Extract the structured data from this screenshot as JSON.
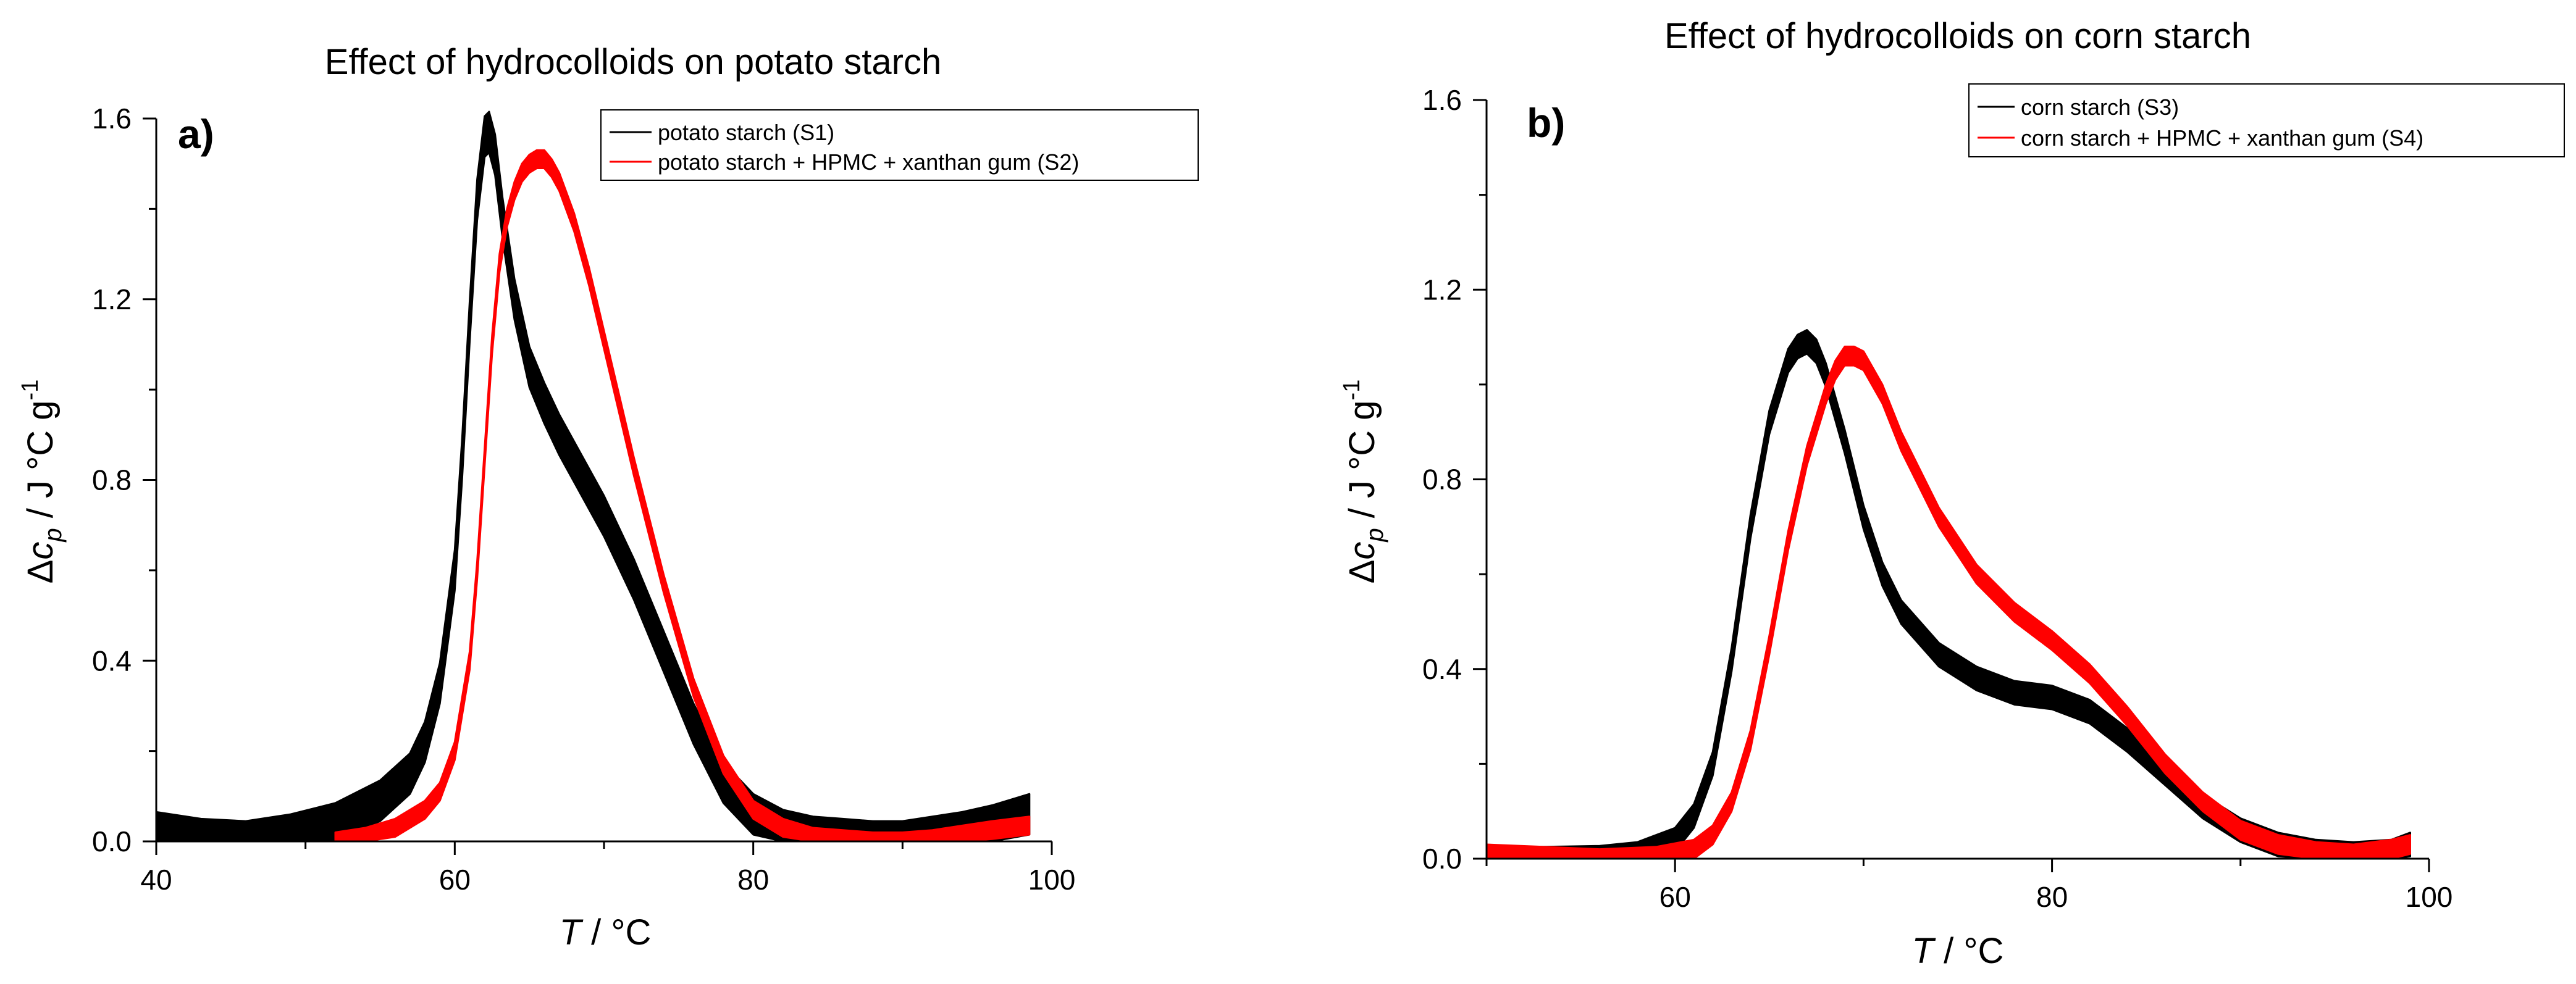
{
  "chart_data": [
    {
      "panel_label": "a)",
      "type": "line",
      "title": "Effect of hydrocolloids on potato starch",
      "xlabel": {
        "main": "T",
        "unit": " / °C"
      },
      "ylabel": {
        "prefix": "Δc",
        "sub": "p",
        "unit": " / J °C g",
        "sup": "-1"
      },
      "xlim": [
        40,
        100
      ],
      "ylim": [
        0,
        1.6
      ],
      "xticks": [
        40,
        60,
        80,
        100
      ],
      "yticks": [
        0.0,
        0.4,
        0.8,
        1.2,
        1.6
      ],
      "ytick_labels": [
        "0.0",
        "0.4",
        "0.8",
        "1.2",
        "1.6"
      ],
      "legend_position": "top-right",
      "series": [
        {
          "name": "potato starch (S1)",
          "color": "#000000",
          "band": 0.045,
          "x": [
            40,
            43,
            46,
            49,
            52,
            55,
            57,
            58,
            59,
            60,
            60.5,
            61,
            61.5,
            62,
            62.3,
            62.7,
            63.2,
            64,
            65,
            66,
            67,
            68,
            70,
            72,
            74,
            76,
            78,
            80,
            82,
            84,
            86,
            88,
            90,
            92,
            94,
            96,
            98.5
          ],
          "y": [
            0.02,
            0.005,
            0.0,
            0.015,
            0.04,
            0.09,
            0.15,
            0.22,
            0.35,
            0.6,
            0.85,
            1.15,
            1.42,
            1.56,
            1.57,
            1.52,
            1.38,
            1.2,
            1.05,
            0.97,
            0.9,
            0.84,
            0.72,
            0.58,
            0.42,
            0.26,
            0.13,
            0.06,
            0.025,
            0.01,
            0.005,
            0.0,
            0.0,
            0.01,
            0.02,
            0.035,
            0.06
          ]
        },
        {
          "name": "potato starch + HPMC + xanthan gum (S2)",
          "color": "#ff0000",
          "band": 0.02,
          "x": [
            52,
            54,
            56,
            58,
            59,
            60,
            61,
            61.5,
            62,
            62.5,
            63,
            63.5,
            64,
            64.5,
            65,
            65.5,
            66,
            66.5,
            67,
            68,
            69,
            70,
            71,
            72,
            74,
            76,
            78,
            80,
            82,
            84,
            86,
            88,
            90,
            92,
            94,
            96,
            98.5
          ],
          "y": [
            0.0,
            0.01,
            0.03,
            0.07,
            0.11,
            0.2,
            0.4,
            0.6,
            0.85,
            1.1,
            1.28,
            1.38,
            1.44,
            1.48,
            1.5,
            1.51,
            1.51,
            1.49,
            1.46,
            1.37,
            1.25,
            1.11,
            0.97,
            0.83,
            0.57,
            0.34,
            0.17,
            0.07,
            0.03,
            0.01,
            0.005,
            0.0,
            0.0,
            0.005,
            0.015,
            0.025,
            0.035
          ]
        }
      ]
    },
    {
      "panel_label": "b)",
      "type": "line",
      "title": "Effect of hydrocolloids on corn starch",
      "xlabel": {
        "main": "T",
        "unit": " / °C"
      },
      "ylabel": {
        "prefix": "Δc",
        "sub": "p",
        "unit": " / J °C g",
        "sup": "-1"
      },
      "xlim": [
        50,
        100
      ],
      "ylim": [
        0,
        1.6
      ],
      "xticks": [
        60,
        80,
        100
      ],
      "yticks": [
        0.0,
        0.4,
        0.8,
        1.2,
        1.6
      ],
      "ytick_labels": [
        "0.0",
        "0.4",
        "0.8",
        "1.2",
        "1.6"
      ],
      "legend_position": "top-right",
      "series": [
        {
          "name": "corn starch (S3)",
          "color": "#000000",
          "band": 0.025,
          "x": [
            50,
            53,
            56,
            58,
            60,
            61,
            62,
            63,
            64,
            65,
            66,
            66.5,
            67,
            67.5,
            68,
            69,
            70,
            71,
            72,
            74,
            76,
            78,
            80,
            82,
            84,
            86,
            88,
            90,
            92,
            94,
            96,
            98,
            99
          ],
          "y": [
            0.0,
            0.0,
            0.002,
            0.01,
            0.04,
            0.09,
            0.2,
            0.42,
            0.7,
            0.92,
            1.05,
            1.08,
            1.09,
            1.07,
            1.02,
            0.88,
            0.72,
            0.6,
            0.52,
            0.43,
            0.38,
            0.35,
            0.34,
            0.31,
            0.25,
            0.18,
            0.11,
            0.06,
            0.03,
            0.015,
            0.01,
            0.015,
            0.03
          ]
        },
        {
          "name": "corn starch + HPMC + xanthan gum (S4)",
          "color": "#ff0000",
          "band": 0.02,
          "x": [
            50,
            53,
            56,
            59,
            61,
            62,
            63,
            64,
            65,
            66,
            67,
            68,
            68.5,
            69,
            69.5,
            70,
            71,
            72,
            74,
            76,
            78,
            80,
            82,
            84,
            86,
            88,
            90,
            92,
            94,
            96,
            98,
            99
          ],
          "y": [
            0.01,
            0.005,
            0.0,
            0.005,
            0.02,
            0.05,
            0.12,
            0.25,
            0.45,
            0.67,
            0.85,
            0.98,
            1.03,
            1.06,
            1.06,
            1.05,
            0.98,
            0.88,
            0.72,
            0.6,
            0.52,
            0.46,
            0.39,
            0.3,
            0.2,
            0.12,
            0.06,
            0.03,
            0.015,
            0.01,
            0.02,
            0.03
          ]
        }
      ]
    }
  ]
}
